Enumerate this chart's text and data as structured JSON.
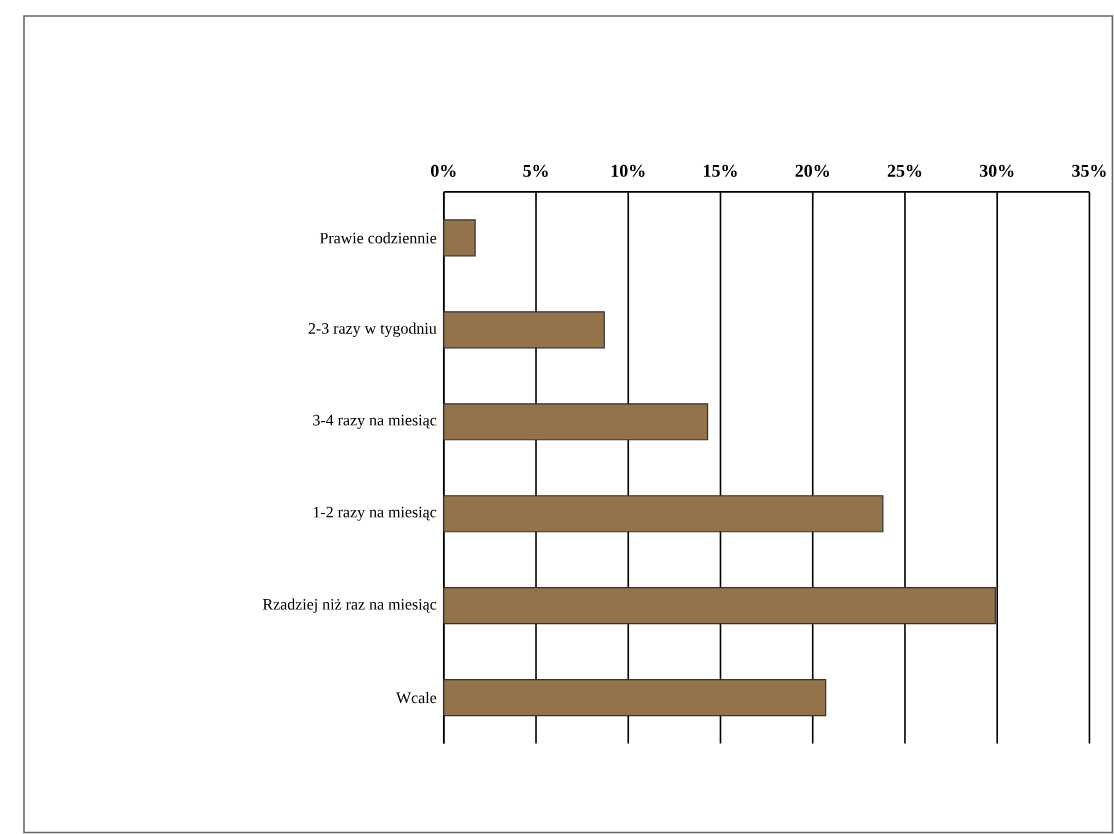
{
  "chart_data": {
    "type": "bar",
    "orientation": "horizontal",
    "categories": [
      "Prawie codziennie",
      "2-3 razy w tygodniu",
      "3-4 razy na miesiąc",
      "1-2 razy na miesiąc",
      "Rzadziej niż raz na miesiąc",
      "Wcale"
    ],
    "values": [
      1.7,
      8.7,
      14.3,
      23.8,
      29.9,
      20.7
    ],
    "color": "#94734a",
    "xlim": [
      0,
      35
    ],
    "xticks": [
      {
        "value": 0,
        "label": "0%"
      },
      {
        "value": 5,
        "label": "5%"
      },
      {
        "value": 10,
        "label": "10%"
      },
      {
        "value": 15,
        "label": "15%"
      },
      {
        "value": 20,
        "label": "20%"
      },
      {
        "value": 25,
        "label": "25%"
      },
      {
        "value": 30,
        "label": "30%"
      },
      {
        "value": 35,
        "label": "35%"
      }
    ],
    "grid": "x"
  }
}
